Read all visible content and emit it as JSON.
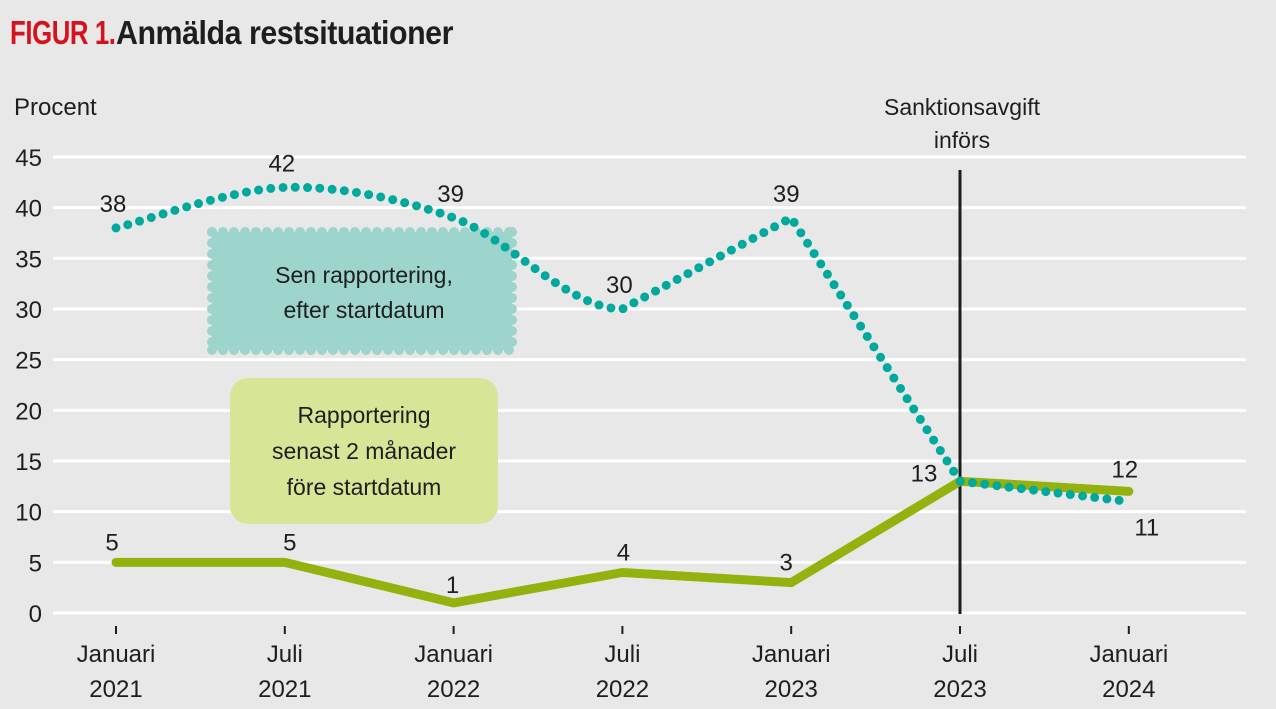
{
  "header": {
    "figure_label": "FIGUR 1.",
    "title": "Anmälda restsituationer"
  },
  "colors": {
    "background": "#e8e8e8",
    "gridline": "#ffffff",
    "late_series": "#00a99d",
    "early_series": "#93b20d",
    "late_box": "#9dd4cc",
    "early_box": "#d7e596",
    "marker_line": "#1e1e1e",
    "figure_label": "#d6121f"
  },
  "chart_data": {
    "type": "line",
    "title": "Anmälda restsituationer",
    "ylabel": "Procent",
    "xlabel": "",
    "ylim": [
      0,
      45
    ],
    "yticks": [
      0,
      5,
      10,
      15,
      20,
      25,
      30,
      35,
      40,
      45
    ],
    "grid": true,
    "categories": [
      {
        "line1": "Januari",
        "line2": "2021"
      },
      {
        "line1": "Juli",
        "line2": "2021"
      },
      {
        "line1": "Januari",
        "line2": "2022"
      },
      {
        "line1": "Juli",
        "line2": "2022"
      },
      {
        "line1": "Januari",
        "line2": "2023"
      },
      {
        "line1": "Juli",
        "line2": "2023"
      },
      {
        "line1": "Januari",
        "line2": "2024"
      }
    ],
    "series": [
      {
        "name": "Sen rapportering, efter startdatum",
        "label_lines": [
          "Sen rapportering,",
          "efter startdatum"
        ],
        "style": "dotted",
        "values": [
          38,
          42,
          39,
          30,
          39,
          13,
          11
        ]
      },
      {
        "name": "Rapportering senast 2 månader före startdatum",
        "label_lines": [
          "Rapportering",
          "senast 2 månader",
          "före startdatum"
        ],
        "style": "solid",
        "values": [
          5,
          5,
          1,
          4,
          3,
          13,
          12
        ]
      }
    ],
    "annotations": [
      {
        "category_index": 5,
        "lines": [
          "Sanktionsavgift",
          "införs"
        ],
        "type": "vertical-line"
      }
    ]
  }
}
